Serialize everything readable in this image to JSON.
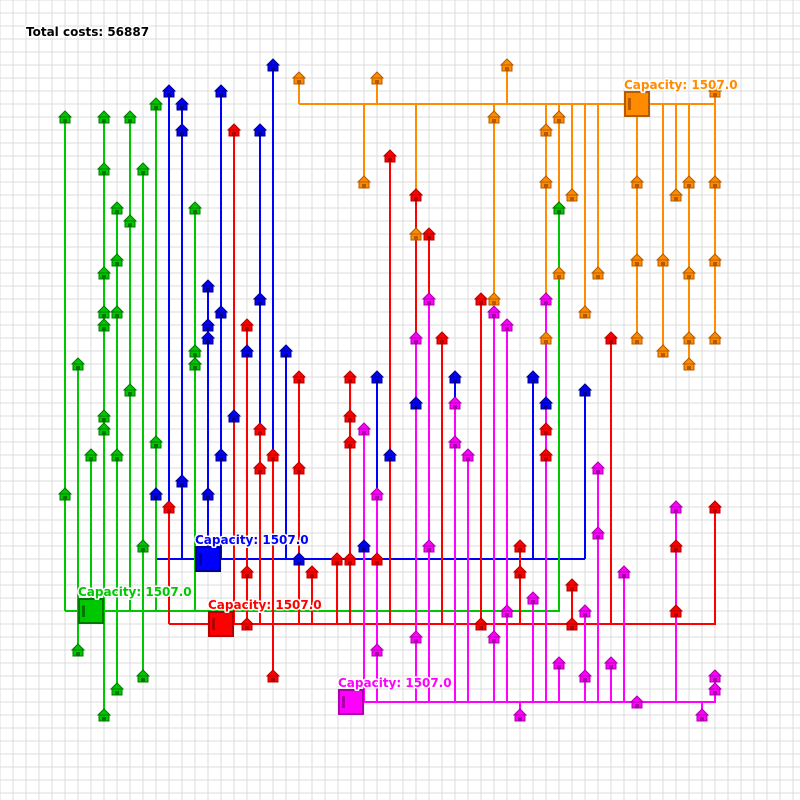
{
  "header": {
    "total_costs_label": "Total costs: 56887"
  },
  "depots": [
    {
      "id": "orange",
      "color": "#FF8C00",
      "capacity_label": "Capacity: 1507.0"
    },
    {
      "id": "blue",
      "color": "#0000FF",
      "capacity_label": "Capacity: 1507.0"
    },
    {
      "id": "green",
      "color": "#00C800",
      "capacity_label": "Capacity: 1507.0"
    },
    {
      "id": "red",
      "color": "#FF0000",
      "capacity_label": "Capacity: 1507.0"
    },
    {
      "id": "magenta",
      "color": "#FF00FF",
      "capacity_label": "Capacity: 1507.0"
    }
  ],
  "colors": {
    "grid": "#dcdcdc",
    "background": "#ffffff"
  }
}
